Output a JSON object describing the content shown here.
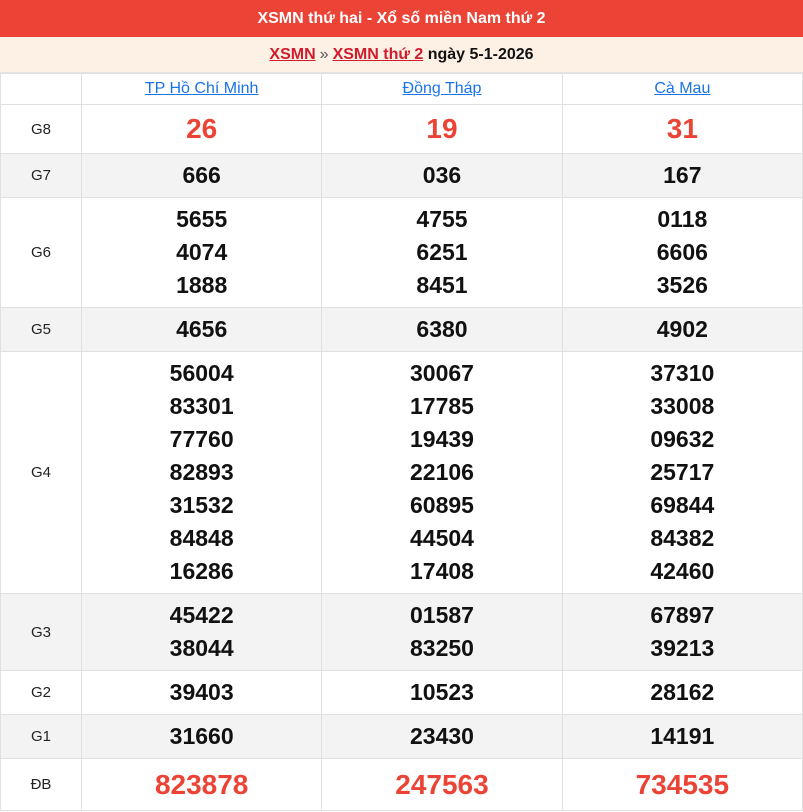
{
  "header": {
    "title": "XSMN thứ hai - Xổ số miền Nam thứ 2"
  },
  "breadcrumb": {
    "link1": "XSMN",
    "separator": "»",
    "link2": "XSMN thứ 2",
    "date_text": "ngày 5-1-2026"
  },
  "provinces": [
    "TP Hồ Chí Minh",
    "Đồng Tháp",
    "Cà Mau"
  ],
  "prizes": [
    {
      "label": "G8",
      "values": [
        [
          "26"
        ],
        [
          "19"
        ],
        [
          "31"
        ]
      ]
    },
    {
      "label": "G7",
      "values": [
        [
          "666"
        ],
        [
          "036"
        ],
        [
          "167"
        ]
      ]
    },
    {
      "label": "G6",
      "values": [
        [
          "5655",
          "4074",
          "1888"
        ],
        [
          "4755",
          "6251",
          "8451"
        ],
        [
          "0118",
          "6606",
          "3526"
        ]
      ]
    },
    {
      "label": "G5",
      "values": [
        [
          "4656"
        ],
        [
          "6380"
        ],
        [
          "4902"
        ]
      ]
    },
    {
      "label": "G4",
      "values": [
        [
          "56004",
          "83301",
          "77760",
          "82893",
          "31532",
          "84848",
          "16286"
        ],
        [
          "30067",
          "17785",
          "19439",
          "22106",
          "60895",
          "44504",
          "17408"
        ],
        [
          "37310",
          "33008",
          "09632",
          "25717",
          "69844",
          "84382",
          "42460"
        ]
      ]
    },
    {
      "label": "G3",
      "values": [
        [
          "45422",
          "38044"
        ],
        [
          "01587",
          "83250"
        ],
        [
          "67897",
          "39213"
        ]
      ]
    },
    {
      "label": "G2",
      "values": [
        [
          "39403"
        ],
        [
          "10523"
        ],
        [
          "28162"
        ]
      ]
    },
    {
      "label": "G1",
      "values": [
        [
          "31660"
        ],
        [
          "23430"
        ],
        [
          "14191"
        ]
      ]
    },
    {
      "label": "ĐB",
      "values": [
        [
          "823878"
        ],
        [
          "247563"
        ],
        [
          "734535"
        ]
      ]
    }
  ],
  "colors": {
    "header_bg": "#eb4436",
    "highlight_number": "#eb4436",
    "link": "#1a73e8",
    "breadcrumb_link": "#d11a2a"
  }
}
